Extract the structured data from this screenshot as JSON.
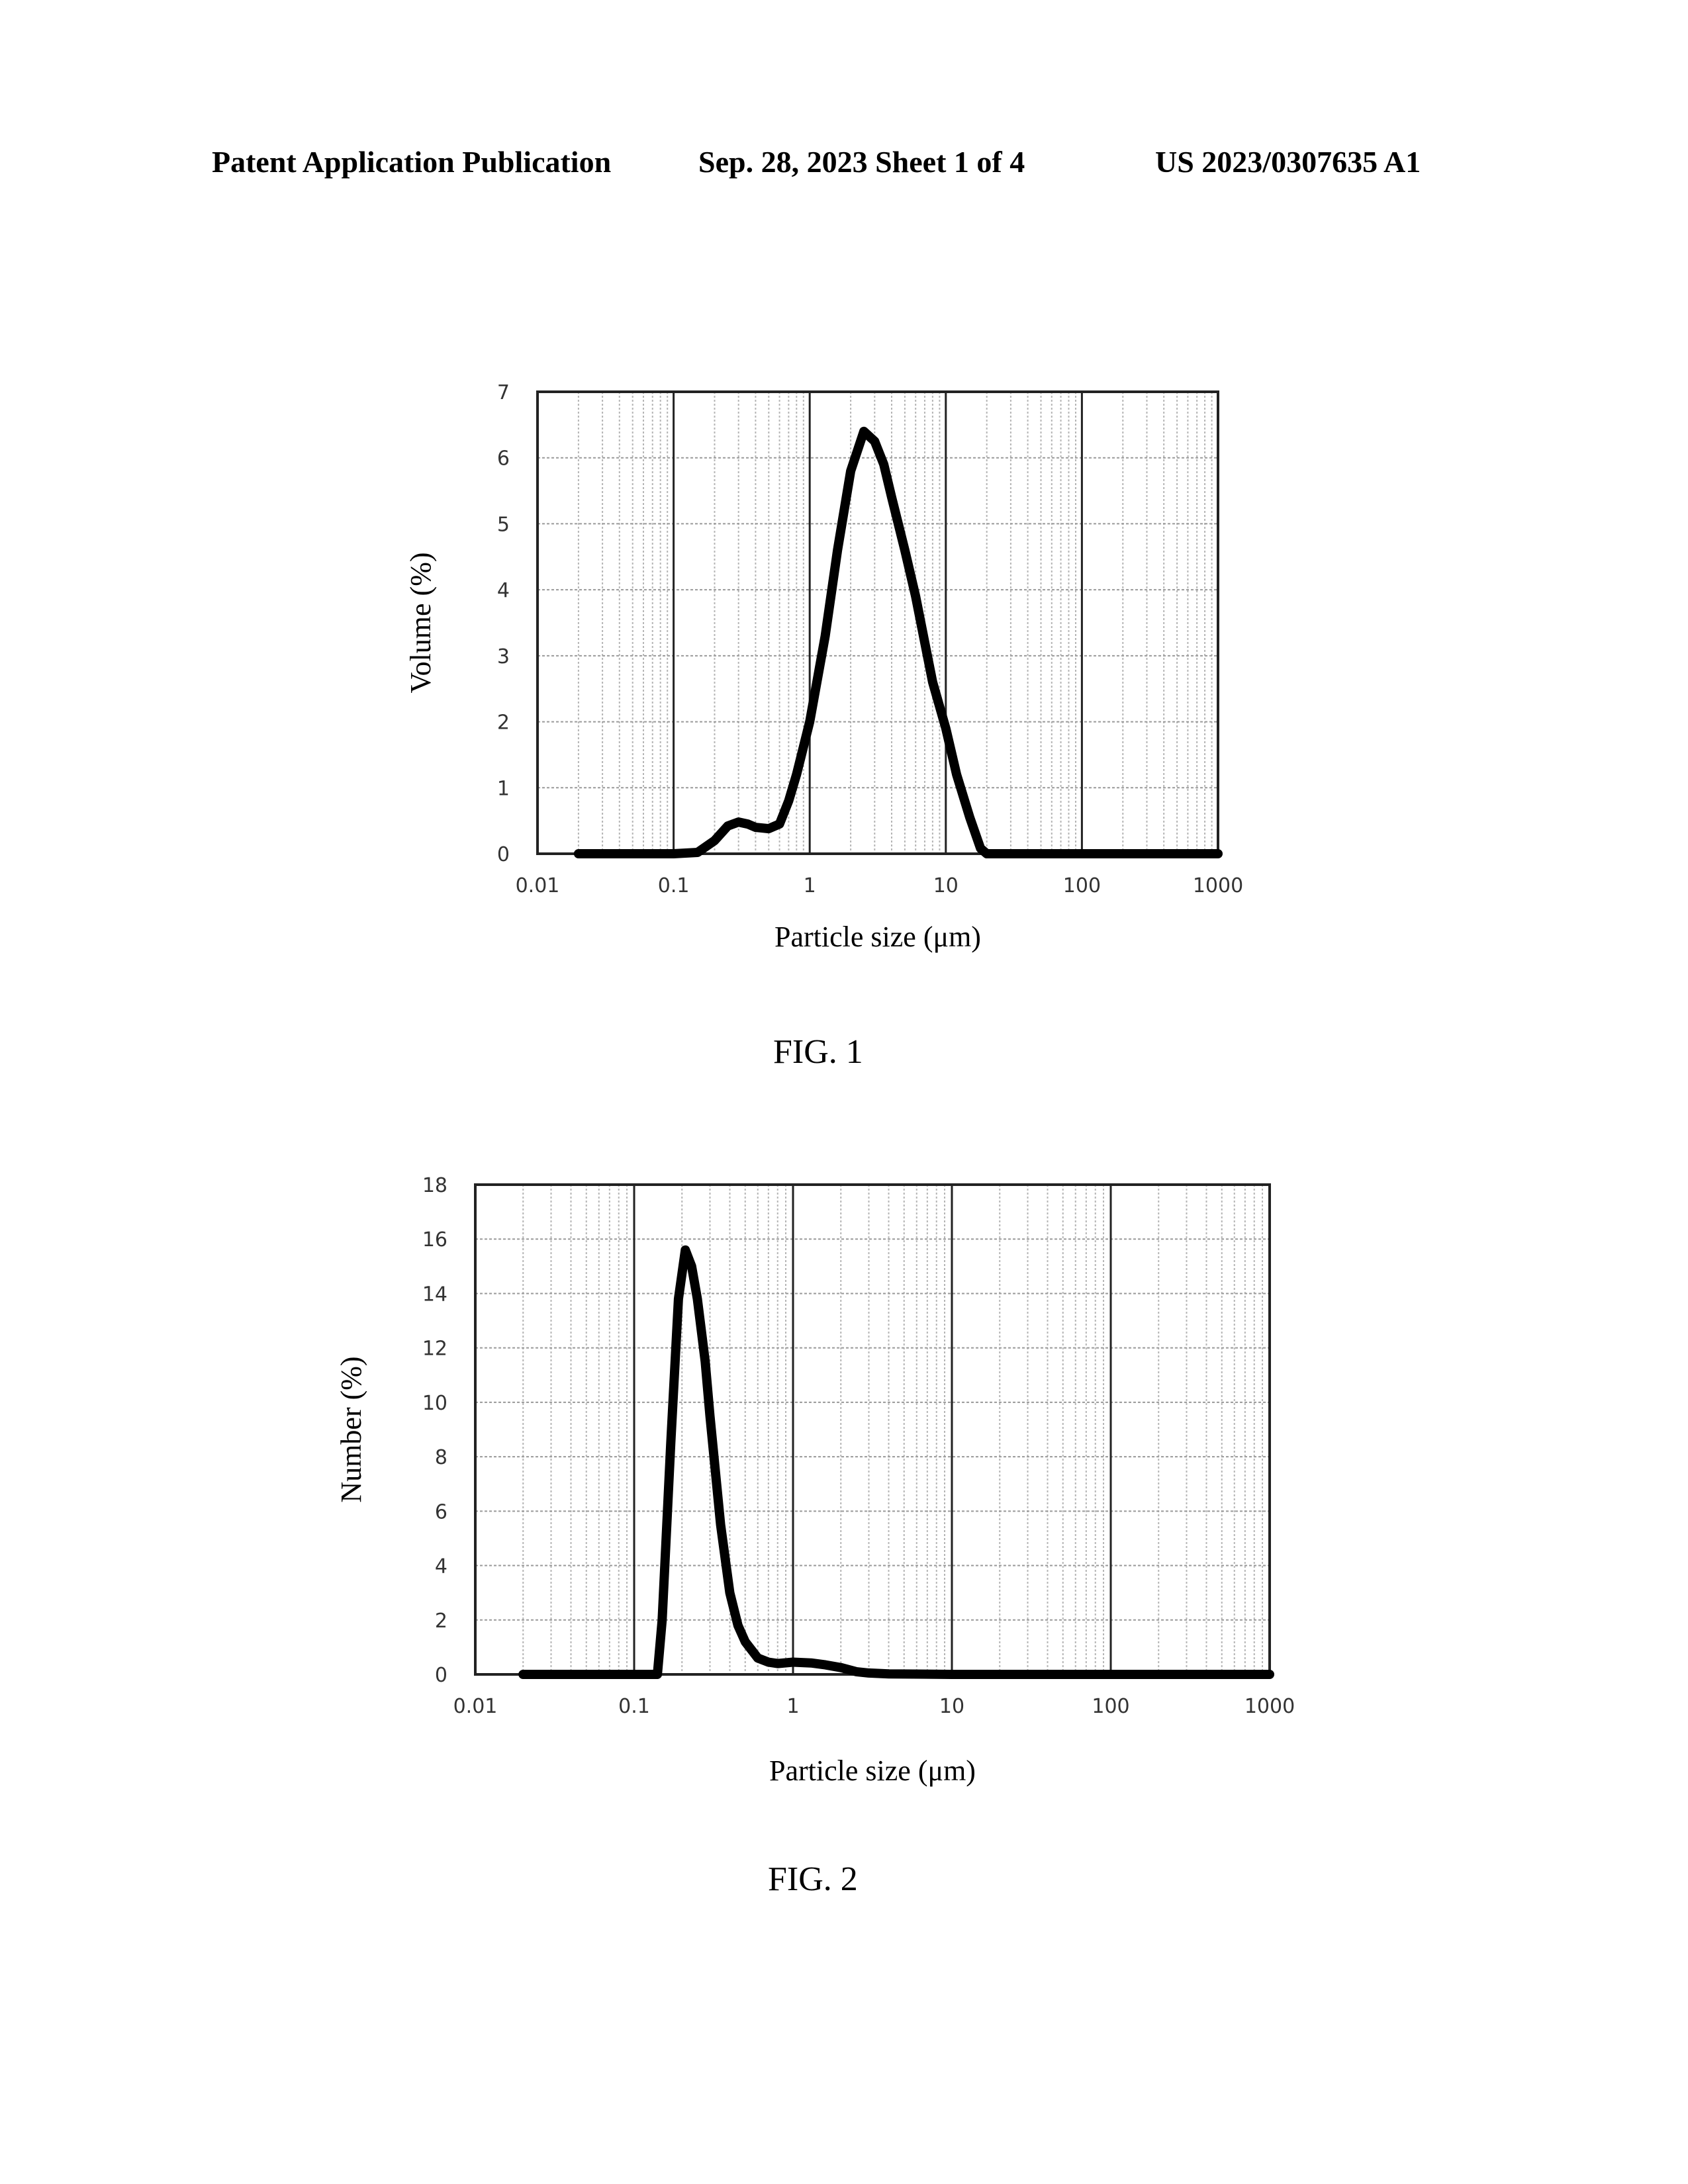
{
  "header": {
    "left": "Patent Application Publication",
    "middle": "Sep. 28, 2023   Sheet 1 of 4",
    "right": "US 2023/0307635 A1"
  },
  "figures": [
    {
      "caption": "FIG. 1"
    },
    {
      "caption": "FIG. 2"
    }
  ],
  "chart_data": [
    {
      "type": "line",
      "xlabel": "Particle size (μm)",
      "ylabel": "Volume (%)",
      "xscale": "log",
      "xlim": [
        0.01,
        1000
      ],
      "ylim": [
        0,
        7
      ],
      "xticks": [
        "0.01",
        "0.1",
        "1",
        "10",
        "100",
        "1000"
      ],
      "yticks": [
        "0",
        "1",
        "2",
        "3",
        "4",
        "5",
        "6",
        "7"
      ],
      "grid": true,
      "series": [
        {
          "x": [
            0.02,
            0.05,
            0.1,
            0.15,
            0.2,
            0.25,
            0.3,
            0.35,
            0.4,
            0.5,
            0.6,
            0.7,
            0.8,
            1.0,
            1.3,
            1.6,
            2.0,
            2.5,
            3.0,
            3.5,
            4.0,
            5.0,
            6.0,
            7.0,
            8.0,
            10.0,
            12.0,
            15.0,
            18.0,
            20.0,
            30.0,
            100.0,
            1000.0
          ],
          "y": [
            0,
            0,
            0,
            0.02,
            0.2,
            0.42,
            0.48,
            0.45,
            0.4,
            0.38,
            0.45,
            0.8,
            1.2,
            2.0,
            3.3,
            4.6,
            5.8,
            6.4,
            6.25,
            5.9,
            5.4,
            4.6,
            3.9,
            3.2,
            2.6,
            1.9,
            1.2,
            0.55,
            0.08,
            0,
            0,
            0,
            0
          ]
        }
      ]
    },
    {
      "type": "line",
      "xlabel": "Particle size (μm)",
      "ylabel": "Number (%)",
      "xscale": "log",
      "xlim": [
        0.01,
        1000
      ],
      "ylim": [
        0,
        18
      ],
      "xticks": [
        "0.01",
        "0.1",
        "1",
        "10",
        "100",
        "1000"
      ],
      "yticks": [
        "0",
        "2",
        "4",
        "6",
        "8",
        "10",
        "12",
        "14",
        "16",
        "18"
      ],
      "grid": true,
      "series": [
        {
          "x": [
            0.02,
            0.05,
            0.1,
            0.14,
            0.15,
            0.17,
            0.19,
            0.21,
            0.23,
            0.25,
            0.28,
            0.3,
            0.35,
            0.4,
            0.45,
            0.5,
            0.6,
            0.7,
            0.8,
            1.0,
            1.3,
            1.6,
            2.0,
            2.5,
            3.0,
            4.0,
            10.0,
            100.0,
            1000.0
          ],
          "y": [
            0,
            0,
            0,
            0,
            2.0,
            8.5,
            13.8,
            15.6,
            15.0,
            13.8,
            11.5,
            9.5,
            5.5,
            3.0,
            1.8,
            1.2,
            0.6,
            0.45,
            0.4,
            0.45,
            0.42,
            0.35,
            0.25,
            0.1,
            0.05,
            0.02,
            0,
            0,
            0
          ]
        }
      ]
    }
  ]
}
